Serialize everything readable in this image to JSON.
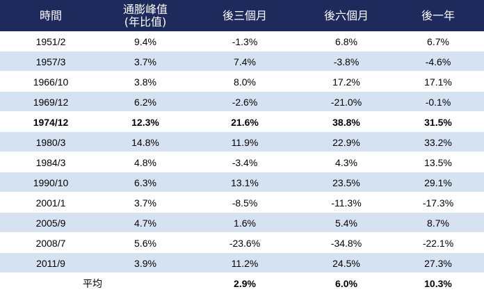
{
  "headers": [
    "時間",
    "通膨峰值\n(年比值)",
    "後三個月",
    "後六個月",
    "後一年"
  ],
  "rows": [
    {
      "date": "1951/2",
      "peak": "9.4%",
      "m3": "-1.3%",
      "m6": "6.8%",
      "y1": "6.7%"
    },
    {
      "date": "1957/3",
      "peak": "3.7%",
      "m3": "7.4%",
      "m6": "-3.8%",
      "y1": "-4.6%"
    },
    {
      "date": "1966/10",
      "peak": "3.8%",
      "m3": "8.0%",
      "m6": "17.2%",
      "y1": "17.1%"
    },
    {
      "date": "1969/12",
      "peak": "6.2%",
      "m3": "-2.6%",
      "m6": "-21.0%",
      "y1": "-0.1%"
    },
    {
      "date": "1974/12",
      "peak": "12.3%",
      "m3": "21.6%",
      "m6": "38.8%",
      "y1": "31.5%"
    },
    {
      "date": "1980/3",
      "peak": "14.8%",
      "m3": "11.9%",
      "m6": "22.9%",
      "y1": "33.2%"
    },
    {
      "date": "1984/3",
      "peak": "4.8%",
      "m3": "-3.4%",
      "m6": "4.3%",
      "y1": "13.5%"
    },
    {
      "date": "1990/10",
      "peak": "6.3%",
      "m3": "13.1%",
      "m6": "23.5%",
      "y1": "29.1%"
    },
    {
      "date": "2001/1",
      "peak": "3.7%",
      "m3": "-8.5%",
      "m6": "-11.3%",
      "y1": "-17.3%"
    },
    {
      "date": "2005/9",
      "peak": "4.7%",
      "m3": "1.6%",
      "m6": "5.4%",
      "y1": "8.7%"
    },
    {
      "date": "2008/7",
      "peak": "5.6%",
      "m3": "-23.6%",
      "m6": "-34.8%",
      "y1": "-22.1%"
    },
    {
      "date": "2011/9",
      "peak": "3.9%",
      "m3": "11.2%",
      "m6": "24.5%",
      "y1": "27.3%"
    }
  ],
  "bold_row_date": "1974/12",
  "average": {
    "label": "平均",
    "m3": "2.9%",
    "m6": "6.0%",
    "y1": "10.3%"
  },
  "colors": {
    "header_bg": "#1f2a5c",
    "header_text": "#ffffff",
    "shade": "#d4e2f2"
  }
}
